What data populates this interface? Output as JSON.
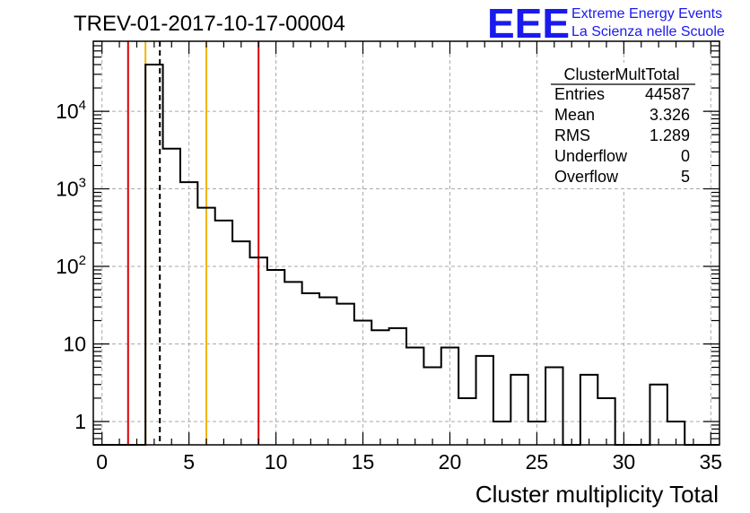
{
  "chart_data": {
    "type": "histogram",
    "title": "TREV-01-2017-10-17-00004",
    "xlabel": "Cluster multiplicity Total",
    "ylabel": "",
    "xlim": [
      -0.5,
      35.5
    ],
    "ylim": [
      0.5,
      80000
    ],
    "yscale": "log",
    "grid": true,
    "bin_edges_start": -0.5,
    "bin_width": 1,
    "bin_counts": [
      0,
      0,
      0,
      40000,
      3300,
      1220,
      570,
      390,
      210,
      130,
      90,
      63,
      45,
      40,
      33,
      20,
      15,
      16,
      9,
      5,
      9,
      2,
      7,
      1,
      4,
      1,
      5,
      0,
      4,
      2,
      0,
      0,
      3,
      1,
      0,
      0
    ],
    "x_ticks": [
      {
        "value": 0,
        "label": "0"
      },
      {
        "value": 5,
        "label": "5"
      },
      {
        "value": 10,
        "label": "10"
      },
      {
        "value": 15,
        "label": "15"
      },
      {
        "value": 20,
        "label": "20"
      },
      {
        "value": 25,
        "label": "25"
      },
      {
        "value": 30,
        "label": "30"
      },
      {
        "value": 35,
        "label": "35"
      }
    ],
    "y_ticks": [
      {
        "value": 1,
        "base": "1",
        "exp": ""
      },
      {
        "value": 10,
        "base": "10",
        "exp": ""
      },
      {
        "value": 100,
        "base": "10",
        "exp": "2"
      },
      {
        "value": 1000,
        "base": "10",
        "exp": "3"
      },
      {
        "value": 10000,
        "base": "10",
        "exp": "4"
      }
    ],
    "vertical_lines": [
      {
        "x": 1.5,
        "color": "#dd0000",
        "style": "solid"
      },
      {
        "x": 2.5,
        "color": "#f0b400",
        "style": "solid"
      },
      {
        "x": 3.326,
        "color": "#000000",
        "style": "dashed"
      },
      {
        "x": 6.0,
        "color": "#f0b400",
        "style": "solid"
      },
      {
        "x": 9.0,
        "color": "#dd0000",
        "style": "solid"
      }
    ],
    "stats_box": {
      "title": "ClusterMultTotal",
      "rows": [
        {
          "label": "Entries",
          "value": "44587"
        },
        {
          "label": "Mean",
          "value": "3.326"
        },
        {
          "label": "RMS",
          "value": "1.289"
        },
        {
          "label": "Underflow",
          "value": "0"
        },
        {
          "label": "Overflow",
          "value": "5"
        }
      ]
    }
  },
  "logo": {
    "text": "EEE",
    "line1": "Extreme Energy Events",
    "line2": "La Scienza nelle Scuole",
    "color": "#1a1aee"
  }
}
